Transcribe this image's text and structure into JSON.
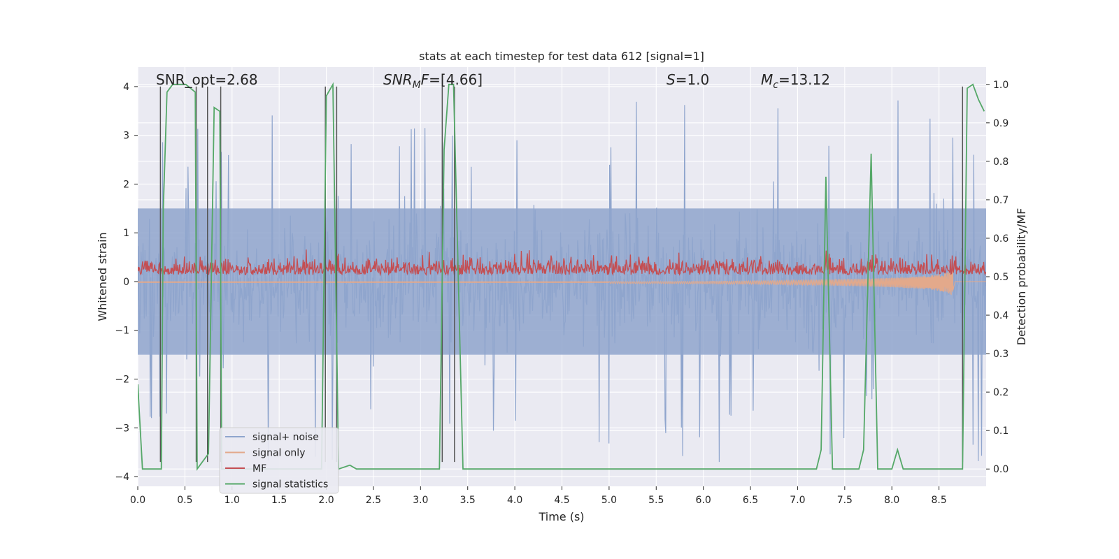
{
  "chart_data": {
    "type": "line",
    "title": "stats at each timestep for test data 612 [signal=1]",
    "xlabel": "Time (s)",
    "ylabel": "Whitened strain",
    "ylabel_right": "Detection probability/MF",
    "xlim": [
      0,
      9.0
    ],
    "ylim": [
      -4.2,
      4.4
    ],
    "ylim_right": [
      -0.045,
      1.045
    ],
    "x_ticks": [
      0.0,
      0.5,
      1.0,
      1.5,
      2.0,
      2.5,
      3.0,
      3.5,
      4.0,
      4.5,
      5.0,
      5.5,
      6.0,
      6.5,
      7.0,
      7.5,
      8.0,
      8.5
    ],
    "x_tick_labels": [
      "0.0",
      "0.5",
      "1.0",
      "1.5",
      "2.0",
      "2.5",
      "3.0",
      "3.5",
      "4.0",
      "4.5",
      "5.0",
      "5.5",
      "6.0",
      "6.5",
      "7.0",
      "7.5",
      "8.0",
      "8.5"
    ],
    "y_ticks": [
      -4,
      -3,
      -2,
      -1,
      0,
      1,
      2,
      3,
      4
    ],
    "y_tick_labels": [
      "−4",
      "−3",
      "−2",
      "−1",
      "0",
      "1",
      "2",
      "3",
      "4"
    ],
    "y_ticks_right": [
      0.0,
      0.1,
      0.2,
      0.3,
      0.4,
      0.5,
      0.6,
      0.7,
      0.8,
      0.9,
      1.0
    ],
    "y_tick_labels_right": [
      "0.0",
      "0.1",
      "0.2",
      "0.3",
      "0.4",
      "0.5",
      "0.6",
      "0.7",
      "0.8",
      "0.9",
      "1.0"
    ],
    "grid": true,
    "legend_position": "bottom-left",
    "annotations": [
      {
        "text": "SNR_opt=2.68",
        "x": 0.2
      },
      {
        "text": "SNR_MF=[4.66]",
        "x": 2.6
      },
      {
        "text": "S=1.0",
        "x": 5.6
      },
      {
        "text": "M_c=13.12",
        "x": 6.6
      }
    ],
    "series": [
      {
        "name": "signal+ noise",
        "color": "#8fa5cd",
        "kind": "noise",
        "amplitude_typical": 1.5,
        "amplitude_peak": 4.0
      },
      {
        "name": "signal only",
        "color": "#e3a98b",
        "kind": "chirp",
        "peak_time": 8.65,
        "peak_amplitude": -0.38
      },
      {
        "name": "MF",
        "color": "#c44e52",
        "kind": "mf",
        "baseline": 0.52,
        "peak": 0.63
      },
      {
        "name": "signal statistics",
        "color": "#55a868",
        "axis": "right",
        "x": [
          0.0,
          0.05,
          0.25,
          0.27,
          0.31,
          0.37,
          0.41,
          0.51,
          0.61,
          0.63,
          0.69,
          0.75,
          0.81,
          0.87,
          0.89,
          1.0,
          1.95,
          2.0,
          2.07,
          2.13,
          2.25,
          2.32,
          3.2,
          3.25,
          3.3,
          3.35,
          3.45,
          7.2,
          7.25,
          7.3,
          7.37,
          7.65,
          7.7,
          7.78,
          7.85,
          8.0,
          8.06,
          8.12,
          8.75,
          8.8,
          8.86,
          8.92,
          8.98
        ],
        "y": [
          0.22,
          0.0,
          0.0,
          0.67,
          0.98,
          1.0,
          1.0,
          1.0,
          0.98,
          0.0,
          0.02,
          0.04,
          0.94,
          0.93,
          0.0,
          0.0,
          0.0,
          0.97,
          1.0,
          0.0,
          0.01,
          0.0,
          0.0,
          0.83,
          1.0,
          1.0,
          0.0,
          0.0,
          0.05,
          0.76,
          0.0,
          0.0,
          0.05,
          0.82,
          0.0,
          0.0,
          0.05,
          0.0,
          0.0,
          0.99,
          1.0,
          0.96,
          0.93
        ]
      }
    ],
    "vertical_lines": {
      "color": "#555555",
      "x": [
        0.24,
        0.62,
        0.74,
        0.88,
        1.99,
        2.11,
        3.23,
        3.36,
        8.75
      ],
      "top_y": 4.0,
      "bottom_y": -3.7
    },
    "legend_entries": [
      "signal+ noise",
      "signal only",
      "MF",
      "signal statistics"
    ]
  }
}
